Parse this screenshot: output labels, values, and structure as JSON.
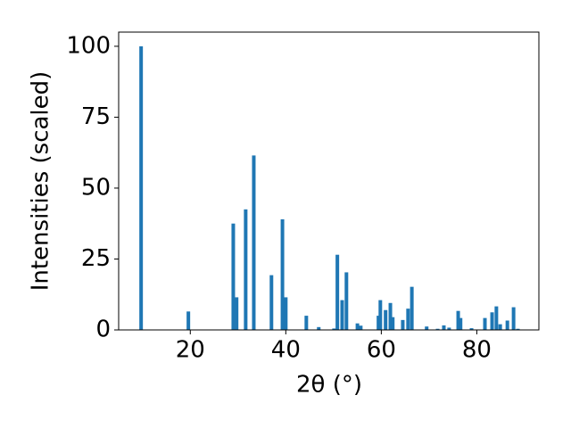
{
  "chart_data": {
    "type": "bar",
    "xlabel": "2θ (°)",
    "ylabel": "Intensities (scaled)",
    "x": [
      9.7,
      19.6,
      29.0,
      29.7,
      31.6,
      33.3,
      37.0,
      39.3,
      40.0,
      44.3,
      46.9,
      50.1,
      50.8,
      51.8,
      52.7,
      55.0,
      55.7,
      59.4,
      59.8,
      60.9,
      61.9,
      62.4,
      64.5,
      65.6,
      66.4,
      69.5,
      71.8,
      73.1,
      74.2,
      76.1,
      76.6,
      78.9,
      81.7,
      83.2,
      84.1,
      84.9,
      86.4,
      87.7,
      88.6
    ],
    "values": [
      100,
      6.5,
      37.5,
      11.5,
      42.5,
      61.5,
      19.3,
      39,
      11.5,
      5,
      1,
      0.5,
      26.5,
      10.5,
      20.3,
      2.3,
      1.5,
      5,
      10.5,
      7,
      9.5,
      4.5,
      3.5,
      7.5,
      15.2,
      1.2,
      0.4,
      1.6,
      0.8,
      6.7,
      4.2,
      0.6,
      4.2,
      6.2,
      8.3,
      2,
      3.3,
      8,
      0.4
    ],
    "color": "#1f77b4",
    "xlim": [
      5,
      93
    ],
    "xticks": [
      20,
      40,
      60,
      80
    ],
    "ylim": [
      0,
      105
    ],
    "yticks": [
      0,
      25,
      50,
      75,
      100
    ]
  }
}
